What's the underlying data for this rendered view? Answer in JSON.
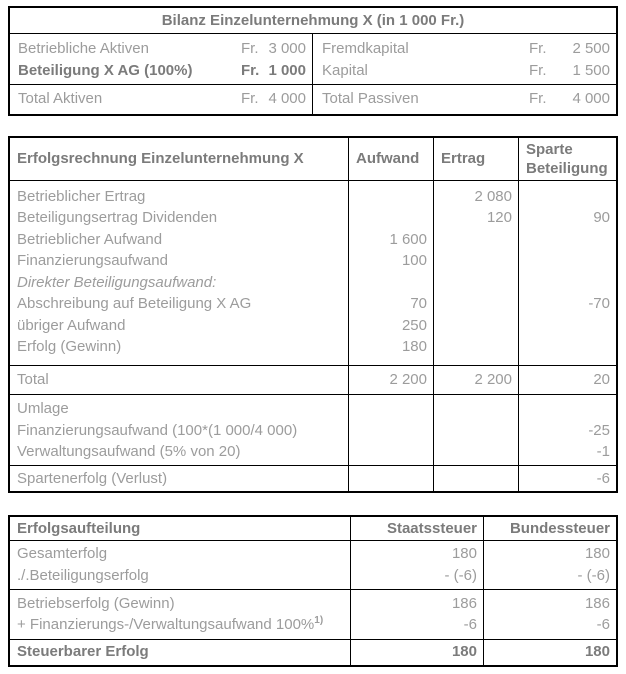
{
  "bilanz": {
    "title": "Bilanz Einzelunternehmung X (in 1 000 Fr.)",
    "rows": {
      "aktiven1": {
        "label": "Betriebliche Aktiven",
        "fr": "Fr.",
        "amount": "3 000"
      },
      "aktiven2": {
        "label": "Beteiligung X AG (100%)",
        "fr": "Fr.",
        "amount": "1 000"
      },
      "passiven1": {
        "label": "Fremdkapital",
        "fr": "Fr.",
        "amount": "2 500"
      },
      "passiven2": {
        "label": "Kapital",
        "fr": "Fr.",
        "amount": "1 500"
      },
      "total_aktiven": {
        "label": "Total Aktiven",
        "fr": "Fr.",
        "amount": "4 000"
      },
      "total_passiven": {
        "label": "Total Passiven",
        "fr": "Fr.",
        "amount": "4 000"
      }
    }
  },
  "erfolgsrechnung": {
    "headers": {
      "title": "Erfolgsrechnung Einzelunternehmung X",
      "aufwand": "Aufwand",
      "ertrag": "Ertrag",
      "sparte": "Sparte Beteiligung"
    },
    "rows": [
      {
        "label": "Betrieblicher Ertrag",
        "aufwand": "",
        "ertrag": "2 080",
        "sparte": ""
      },
      {
        "label": "Beteiligungsertrag Dividenden",
        "aufwand": "",
        "ertrag": "120",
        "sparte": "90"
      },
      {
        "label": "Betrieblicher Aufwand",
        "aufwand": "1 600",
        "ertrag": "",
        "sparte": ""
      },
      {
        "label": "Finanzierungsaufwand",
        "aufwand": "100",
        "ertrag": "",
        "sparte": ""
      },
      {
        "label": "Direkter Beteiligungsaufwand:",
        "aufwand": "",
        "ertrag": "",
        "sparte": ""
      },
      {
        "label": "Abschreibung auf Beteiligung X AG",
        "aufwand": "70",
        "ertrag": "",
        "sparte": "-70"
      },
      {
        "label": "übriger Aufwand",
        "aufwand": "250",
        "ertrag": "",
        "sparte": ""
      },
      {
        "label": "Erfolg (Gewinn)",
        "aufwand": "180",
        "ertrag": "",
        "sparte": ""
      }
    ],
    "total": {
      "label": "Total",
      "aufwand": "2 200",
      "ertrag": "2 200",
      "sparte": "20"
    },
    "umlage": [
      {
        "label": "Umlage",
        "sparte": ""
      },
      {
        "label": "Finanzierungsaufwand (100*(1 000/4 000)",
        "sparte": "-25"
      },
      {
        "label": "Verwaltungsaufwand (5% von 20)",
        "sparte": "-1"
      }
    ],
    "final": {
      "label": "Spartenerfolg (Verlust)",
      "sparte": "-6"
    }
  },
  "erfolgsaufteilung": {
    "headers": {
      "title": "Erfolgsaufteilung",
      "staat": "Staatssteuer",
      "bund": "Bundessteuer"
    },
    "rows1": [
      {
        "label": "Gesamterfolg",
        "staat": "180",
        "bund": "180"
      },
      {
        "label": "./.Beteiligungserfolg",
        "staat": "- (-6)",
        "bund": "- (-6)"
      }
    ],
    "rows2": [
      {
        "label": "Betriebserfolg (Gewinn)",
        "footnote": "",
        "staat": "186",
        "bund": "186"
      },
      {
        "label": "+ Finanzierungs-/Verwaltungsaufwand 100%",
        "footnote": "1)",
        "staat": "-6",
        "bund": "-6"
      }
    ],
    "final": {
      "label": "Steuerbarer Erfolg",
      "staat": "180",
      "bund": "180"
    }
  },
  "colors": {
    "border": "#000000",
    "text_regular": "#9c9c9c",
    "text_bold": "#7b7b7b",
    "background": "#ffffff"
  }
}
